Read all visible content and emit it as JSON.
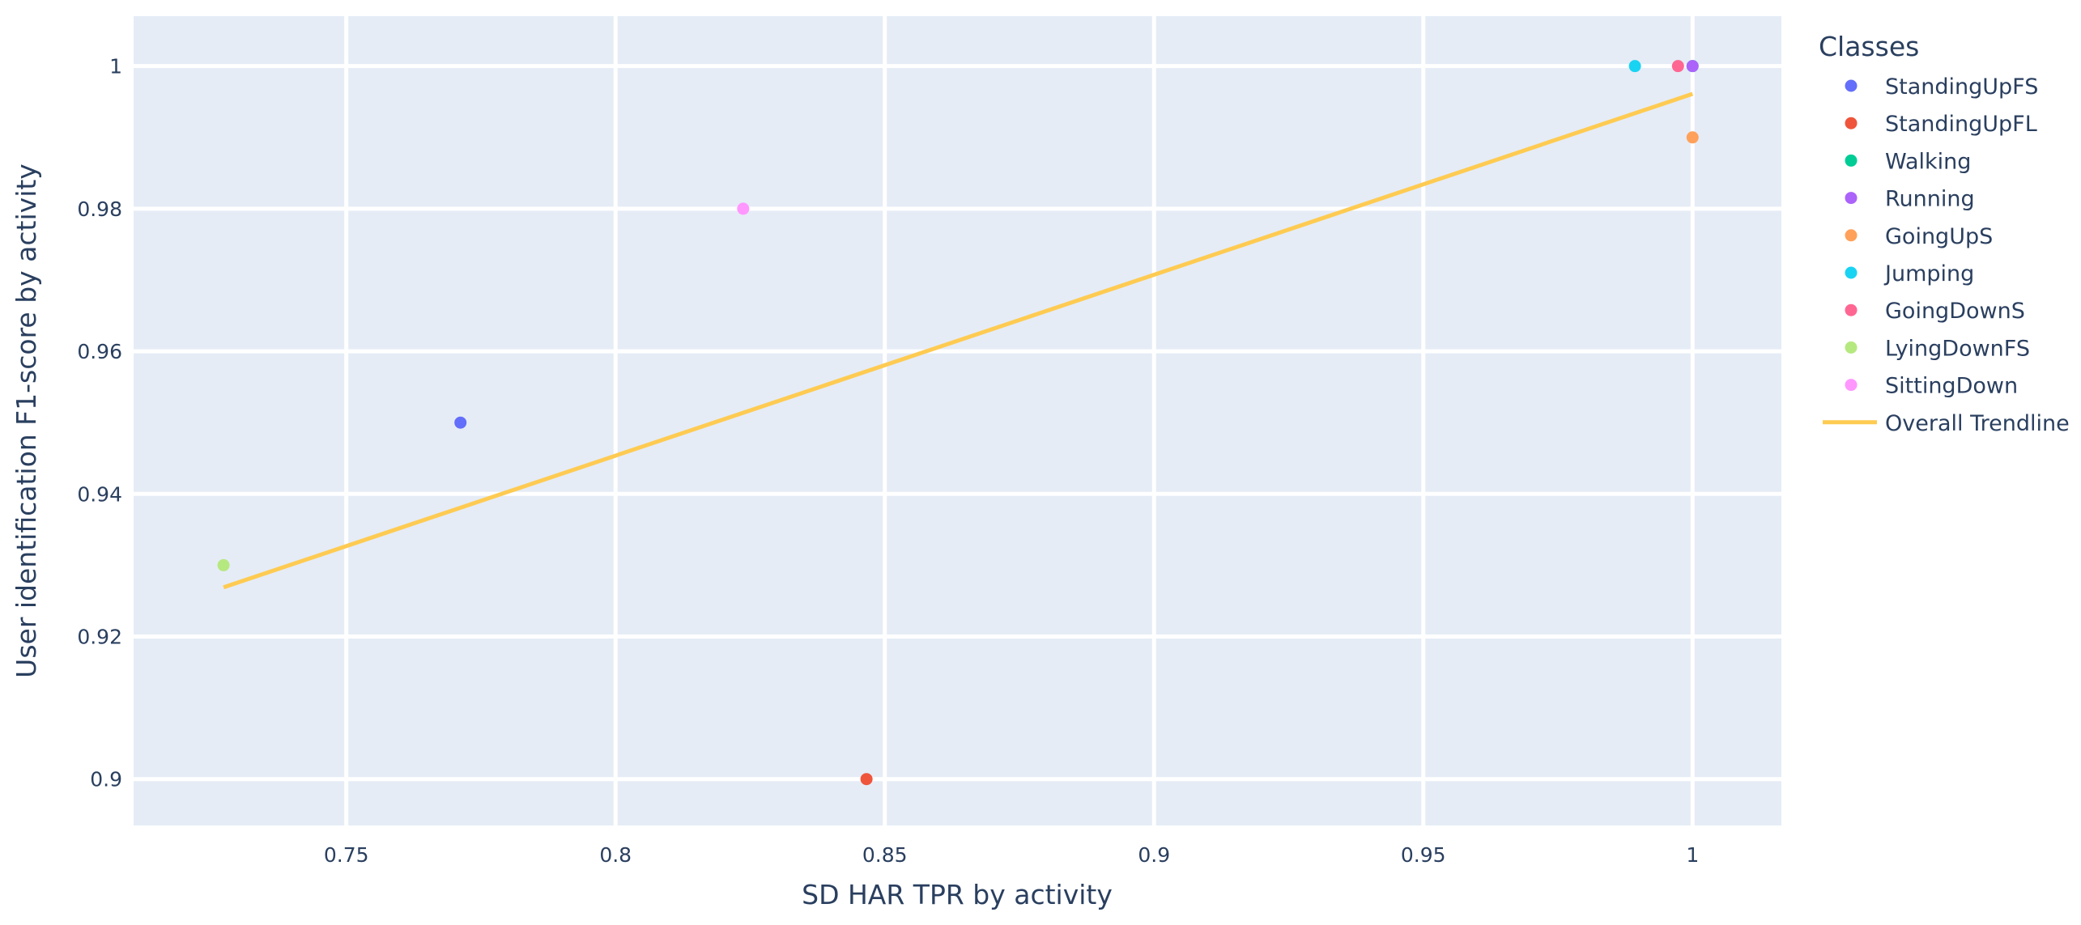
{
  "chart_data": {
    "type": "scatter",
    "title": "",
    "xlabel": "SD HAR TPR by activity",
    "ylabel": "User identification F1-score by activity",
    "xlim": [
      0.7105,
      1.0165
    ],
    "ylim": [
      0.8935,
      1.007
    ],
    "xticks": [
      0.75,
      0.8,
      0.85,
      0.9,
      0.95,
      1
    ],
    "xtick_labels": [
      "0.75",
      "0.8",
      "0.85",
      "0.9",
      "0.95",
      "1"
    ],
    "yticks": [
      0.9,
      0.92,
      0.94,
      0.96,
      0.98,
      1
    ],
    "ytick_labels": [
      "0.9",
      "0.92",
      "0.94",
      "0.96",
      "0.98",
      "1"
    ],
    "grid": true,
    "plot_background": "#e5ecf6",
    "grid_color": "#ffffff",
    "legend": {
      "title": "Classes",
      "placement": "right"
    },
    "series": [
      {
        "name": "StandingUpFS",
        "color": "#636efa",
        "x": [
          0.7712
        ],
        "y": [
          0.95
        ]
      },
      {
        "name": "StandingUpFL",
        "color": "#ef553b",
        "x": [
          0.8466
        ],
        "y": [
          0.9
        ]
      },
      {
        "name": "Walking",
        "color": "#00cc96",
        "x": [
          1.0
        ],
        "y": [
          1.0
        ]
      },
      {
        "name": "Running",
        "color": "#ab63fa",
        "x": [
          1.0
        ],
        "y": [
          1.0
        ]
      },
      {
        "name": "GoingUpS",
        "color": "#ffa15a",
        "x": [
          1.0
        ],
        "y": [
          0.99
        ]
      },
      {
        "name": "Jumping",
        "color": "#19d3f3",
        "x": [
          0.9893
        ],
        "y": [
          1.0
        ]
      },
      {
        "name": "GoingDownS",
        "color": "#ff6692",
        "x": [
          0.9973
        ],
        "y": [
          1.0
        ]
      },
      {
        "name": "LyingDownFS",
        "color": "#b6e880",
        "x": [
          0.7272
        ],
        "y": [
          0.93
        ]
      },
      {
        "name": "SittingDown",
        "color": "#ff97ff",
        "x": [
          0.8237
        ],
        "y": [
          0.98
        ]
      }
    ],
    "trendline": {
      "name": "Overall Trendline",
      "color": "#fecb52",
      "x": [
        0.7272,
        1.0
      ],
      "y": [
        0.9269,
        0.9961
      ]
    }
  }
}
